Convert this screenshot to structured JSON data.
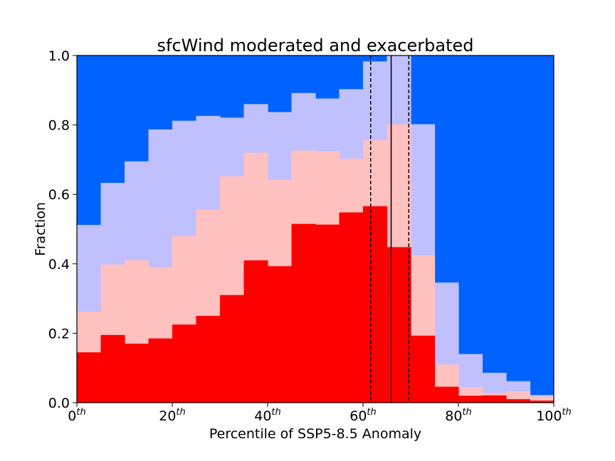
{
  "chart_data": {
    "type": "bar",
    "title": "sfcWind moderated and exacerbated",
    "xlabel": "Percentile of SSP5-8.5 Anomaly",
    "ylabel": "Fraction",
    "xlim": [
      0,
      100
    ],
    "ylim": [
      0,
      1
    ],
    "bin_width": 5,
    "x": [
      0,
      5,
      10,
      15,
      20,
      25,
      30,
      35,
      40,
      45,
      50,
      55,
      60,
      65,
      70,
      75,
      80,
      85,
      90,
      95
    ],
    "xticks": [
      {
        "value": 0,
        "base": "0",
        "sup": "th"
      },
      {
        "value": 20,
        "base": "20",
        "sup": "th"
      },
      {
        "value": 40,
        "base": "40",
        "sup": "th"
      },
      {
        "value": 60,
        "base": "60",
        "sup": "th"
      },
      {
        "value": 80,
        "base": "80",
        "sup": "th"
      },
      {
        "value": 100,
        "base": "100",
        "sup": "th"
      }
    ],
    "yticks": [
      "0.0",
      "0.2",
      "0.4",
      "0.6",
      "0.8",
      "1.0"
    ],
    "colors": {
      "background_band": "#0062ff",
      "band3": "#c0c0ff",
      "band2": "#ffc0c0",
      "band1": "#ff0000"
    },
    "series": [
      {
        "values": [
          0.145,
          0.195,
          0.17,
          0.185,
          0.225,
          0.25,
          0.31,
          0.41,
          0.393,
          0.515,
          0.513,
          0.548,
          0.566,
          0.448,
          0.193,
          0.046,
          0.02,
          0.021,
          0.01,
          0.006
        ]
      },
      {
        "values": [
          0.262,
          0.398,
          0.41,
          0.39,
          0.48,
          0.556,
          0.652,
          0.72,
          0.642,
          0.726,
          0.724,
          0.703,
          0.756,
          0.802,
          0.424,
          0.11,
          0.045,
          0.028,
          0.033,
          0.018
        ]
      },
      {
        "values": [
          0.512,
          0.633,
          0.695,
          0.787,
          0.812,
          0.826,
          0.821,
          0.86,
          0.837,
          0.892,
          0.876,
          0.903,
          0.983,
          1.0,
          0.802,
          0.346,
          0.14,
          0.086,
          0.062,
          0.022
        ]
      }
    ],
    "vlines": [
      {
        "x": 65.9,
        "style": "solid"
      },
      {
        "x": 61.6,
        "style": "dashed"
      },
      {
        "x": 69.6,
        "style": "dashed"
      }
    ],
    "grid": false
  }
}
